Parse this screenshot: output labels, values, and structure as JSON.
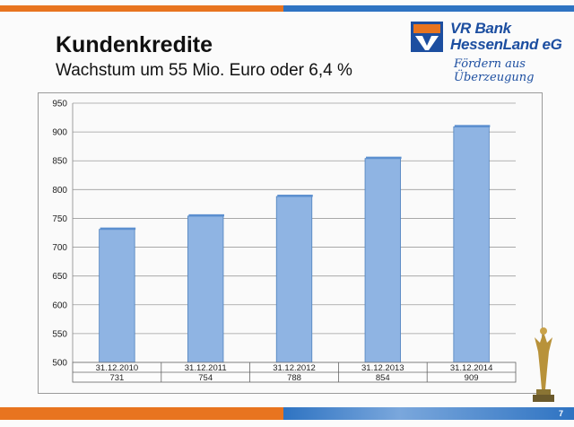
{
  "slide": {
    "title": "Kundenkredite",
    "subtitle": "Wachstum um 55 Mio. Euro oder 6,4 %",
    "page_number": "7"
  },
  "logo": {
    "name_line1": "VR Bank",
    "name_line2": "HessenLand eG",
    "slogan": "Fördern aus Überzeugung"
  },
  "colors": {
    "accent_orange": "#e8741f",
    "accent_blue": "#2e73c2",
    "bar_fill": "#8fb4e3",
    "bar_stroke": "#4f81bd",
    "brand_blue": "#1c4ea0"
  },
  "chart_data": {
    "type": "bar",
    "categories": [
      "31.12.2010",
      "31.12.2011",
      "31.12.2012",
      "31.12.2013",
      "31.12.2014"
    ],
    "values": [
      731,
      754,
      788,
      854,
      909
    ],
    "ylim": [
      500,
      950
    ],
    "yticks": [
      500,
      550,
      600,
      650,
      700,
      750,
      800,
      850,
      900,
      950
    ],
    "grid": true,
    "data_table": true
  }
}
